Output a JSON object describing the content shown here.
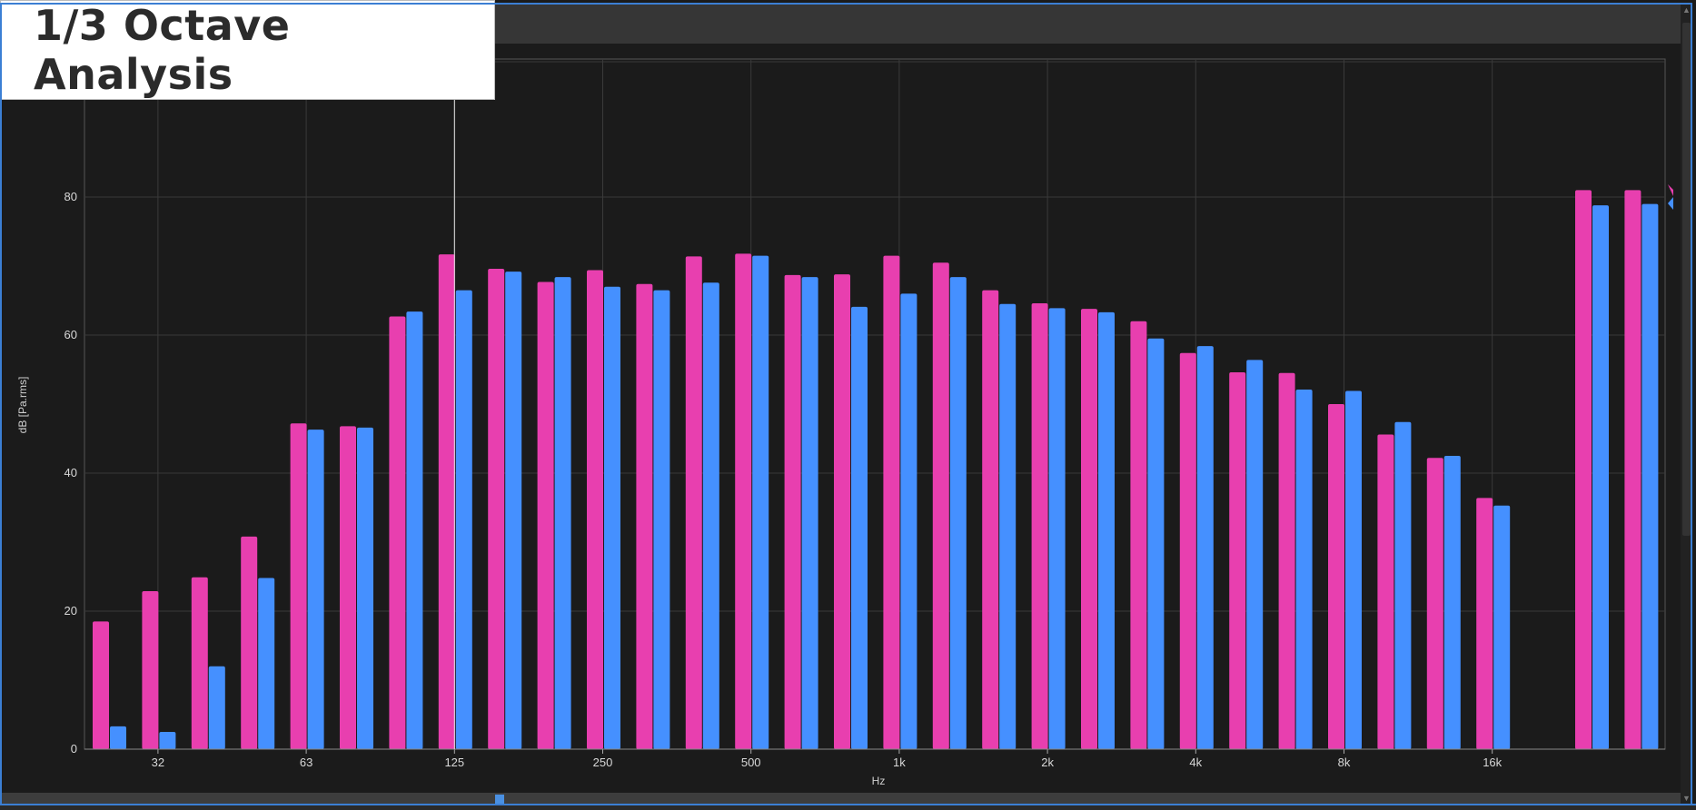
{
  "window": {
    "title": "1/3 Octave Analysis"
  },
  "colors": {
    "background": "#1b1b1b",
    "series_a": "#e83faf",
    "series_b": "#4590ff",
    "grid": "#3a3a3a",
    "frame_accent": "#3b7fd4"
  },
  "icons": [
    "marker-pink-icon",
    "marker-blue-icon",
    "scroll-up-icon",
    "scroll-down-icon"
  ],
  "chart_data": {
    "type": "bar",
    "xlabel": "Hz",
    "ylabel": "dB [Pa.rms]",
    "ylim": [
      0,
      100
    ],
    "yticks": [
      0,
      20,
      40,
      60,
      80
    ],
    "x_tick_labels": [
      {
        "label": "32",
        "index": 1
      },
      {
        "label": "63",
        "index": 4
      },
      {
        "label": "125",
        "index": 7
      },
      {
        "label": "250",
        "index": 10
      },
      {
        "label": "500",
        "index": 13
      },
      {
        "label": "1k",
        "index": 16
      },
      {
        "label": "2k",
        "index": 19
      },
      {
        "label": "4k",
        "index": 22
      },
      {
        "label": "8k",
        "index": 25
      },
      {
        "label": "16k",
        "index": 28
      }
    ],
    "num_bands": 32,
    "grid": true,
    "cursor_index": 7,
    "series": [
      {
        "color": "#e83faf",
        "values": [
          18.5,
          22.9,
          24.9,
          30.8,
          47.2,
          46.8,
          62.7,
          71.7,
          69.6,
          67.7,
          69.4,
          67.4,
          71.4,
          71.8,
          68.7,
          68.8,
          71.5,
          70.5,
          66.5,
          64.6,
          63.8,
          62.0,
          57.4,
          54.6,
          54.5,
          50.0,
          45.6,
          42.2,
          36.4,
          null,
          81.0,
          81.0
        ]
      },
      {
        "color": "#4590ff",
        "values": [
          3.3,
          2.5,
          12.0,
          24.8,
          46.3,
          46.6,
          63.4,
          66.5,
          69.2,
          68.4,
          67.0,
          66.5,
          67.6,
          71.5,
          68.4,
          64.1,
          66.0,
          68.4,
          64.5,
          63.9,
          63.3,
          59.5,
          58.4,
          56.4,
          52.1,
          51.9,
          47.4,
          42.5,
          35.3,
          null,
          78.8,
          79.0
        ]
      }
    ]
  }
}
